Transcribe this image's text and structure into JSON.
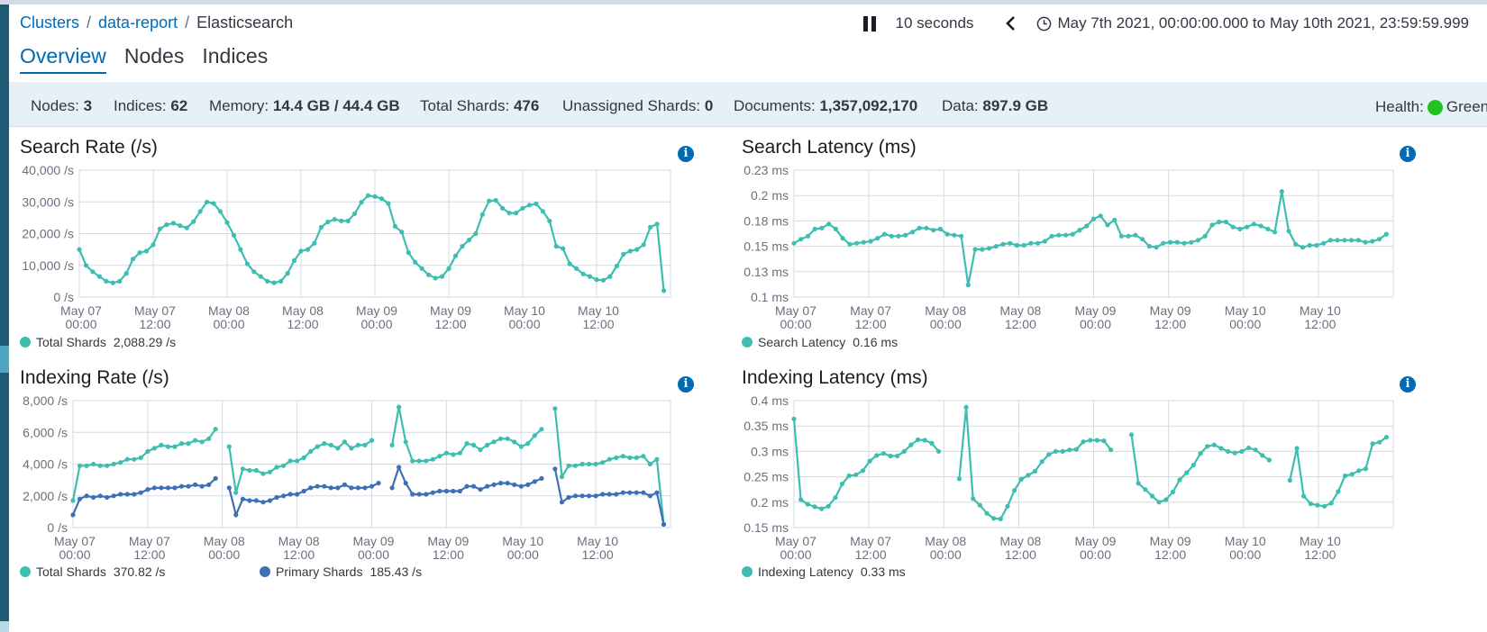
{
  "breadcrumb": {
    "items": [
      "Clusters",
      "data-report"
    ],
    "current": "Elasticsearch"
  },
  "time": {
    "refresh": "10 seconds",
    "range": "May 7th 2021, 00:00:00.000 to May 10th 2021, 23:59:59.999"
  },
  "tabs": [
    "Overview",
    "Nodes",
    "Indices"
  ],
  "summary": {
    "nodes_label": "Nodes:",
    "nodes": "3",
    "indices_label": "Indices:",
    "indices": "62",
    "memory_label": "Memory:",
    "memory": "14.4 GB / 44.4 GB",
    "shards_label": "Total Shards:",
    "shards": "476",
    "unassigned_label": "Unassigned Shards:",
    "unassigned": "0",
    "documents_label": "Documents:",
    "documents": "1,357,092,170",
    "data_label": "Data:",
    "data": "897.9 GB",
    "health_label": "Health:",
    "health": "Green"
  },
  "colors": {
    "teal": "#3ebeb0",
    "blue": "#3f6fb4",
    "link": "#006bb4",
    "health_green": "#21c321"
  },
  "chart_data": [
    {
      "type": "line",
      "title": "Search Rate (/s)",
      "x_ticks": [
        "May 07\n00:00",
        "May 07\n12:00",
        "May 08\n00:00",
        "May 08\n12:00",
        "May 09\n00:00",
        "May 09\n12:00",
        "May 10\n00:00",
        "May 10\n12:00"
      ],
      "y_ticks": [
        "0 /s",
        "10,000 /s",
        "20,000 /s",
        "30,000 /s",
        "40,000 /s"
      ],
      "ylim": [
        0,
        40000
      ],
      "xlim": [
        0,
        96
      ],
      "series": [
        {
          "name": "Total Shards",
          "legend_value": "2,088.29 /s",
          "color": "#3ebeb0",
          "values": [
            15000,
            10000,
            8000,
            6500,
            5000,
            4500,
            5000,
            7500,
            12000,
            14000,
            14500,
            16500,
            21500,
            22800,
            23300,
            22500,
            21800,
            23800,
            27000,
            30000,
            29500,
            27000,
            23500,
            19500,
            15000,
            10500,
            8000,
            6500,
            5000,
            4500,
            5000,
            7500,
            11500,
            14500,
            15000,
            17000,
            22000,
            23700,
            24500,
            24000,
            24000,
            26300,
            29900,
            32000,
            31700,
            31000,
            29500,
            22300,
            20500,
            14000,
            11000,
            9000,
            7000,
            6000,
            6500,
            9000,
            13000,
            16000,
            18000,
            20000,
            26000,
            30300,
            30500,
            28000,
            26500,
            26500,
            28000,
            29000,
            29400,
            27000,
            24000,
            16000,
            15300,
            10500,
            9000,
            7300,
            6500,
            5500,
            5300,
            6500,
            9800,
            13500,
            14500,
            15000,
            16500,
            22000,
            23000,
            2000
          ]
        }
      ]
    },
    {
      "type": "line",
      "title": "Search Latency (ms)",
      "x_ticks": [
        "May 07\n00:00",
        "May 07\n12:00",
        "May 08\n00:00",
        "May 08\n12:00",
        "May 09\n00:00",
        "May 09\n12:00",
        "May 10\n00:00",
        "May 10\n12:00"
      ],
      "y_ticks": [
        "0.1 ms",
        "0.13 ms",
        "0.15 ms",
        "0.18 ms",
        "0.2 ms",
        "0.23 ms"
      ],
      "ylim": [
        0.1,
        0.225
      ],
      "xlim": [
        0,
        96
      ],
      "series": [
        {
          "name": "Search Latency",
          "legend_value": "0.16 ms",
          "color": "#3ebeb0",
          "values": [
            0.153,
            0.157,
            0.16,
            0.167,
            0.168,
            0.172,
            0.167,
            0.158,
            0.152,
            0.153,
            0.154,
            0.155,
            0.158,
            0.162,
            0.16,
            0.16,
            0.161,
            0.164,
            0.168,
            0.168,
            0.166,
            0.167,
            0.162,
            0.161,
            0.16,
            0.112,
            0.147,
            0.147,
            0.148,
            0.15,
            0.152,
            0.153,
            0.151,
            0.151,
            0.153,
            0.153,
            0.155,
            0.16,
            0.161,
            0.161,
            0.162,
            0.166,
            0.17,
            0.177,
            0.18,
            0.171,
            0.176,
            0.16,
            0.16,
            0.161,
            0.157,
            0.15,
            0.149,
            0.153,
            0.154,
            0.154,
            0.153,
            0.154,
            0.156,
            0.16,
            0.171,
            0.174,
            0.174,
            0.169,
            0.167,
            0.169,
            0.172,
            0.17,
            0.167,
            0.164,
            0.204,
            0.165,
            0.152,
            0.149,
            0.151,
            0.151,
            0.153,
            0.156,
            0.156,
            0.156,
            0.156,
            0.156,
            0.154,
            0.155,
            0.157,
            0.162
          ]
        }
      ]
    },
    {
      "type": "line",
      "title": "Indexing Rate (/s)",
      "x_ticks": [
        "May 07\n00:00",
        "May 07\n12:00",
        "May 08\n00:00",
        "May 08\n12:00",
        "May 09\n00:00",
        "May 09\n12:00",
        "May 10\n00:00",
        "May 10\n12:00"
      ],
      "y_ticks": [
        "0 /s",
        "2,000 /s",
        "4,000 /s",
        "6,000 /s",
        "8,000 /s"
      ],
      "ylim": [
        0,
        8000
      ],
      "xlim": [
        0,
        96
      ],
      "series": [
        {
          "name": "Total Shards",
          "legend_value": "370.82 /s",
          "color": "#3ebeb0",
          "values": [
            1700,
            3900,
            3900,
            4000,
            3900,
            3900,
            4000,
            4100,
            4300,
            4300,
            4400,
            4800,
            5000,
            5200,
            5100,
            5100,
            5300,
            5300,
            5500,
            5400,
            5600,
            6200,
            null,
            5100,
            2200,
            3700,
            3600,
            3600,
            3400,
            3500,
            3800,
            3900,
            4200,
            4200,
            4400,
            4800,
            5100,
            5300,
            5200,
            5000,
            5400,
            5000,
            5200,
            5200,
            5500,
            null,
            null,
            5200,
            7600,
            5400,
            4200,
            4200,
            4200,
            4300,
            4500,
            4700,
            4600,
            4700,
            5300,
            5200,
            4900,
            5200,
            5400,
            5600,
            5600,
            5400,
            5100,
            5300,
            5800,
            6200,
            null,
            7500,
            3200,
            3900,
            3900,
            4000,
            4000,
            4000,
            4100,
            4300,
            4400,
            4500,
            4400,
            4400,
            4500,
            4000,
            4300,
            200
          ]
        },
        {
          "name": "Primary Shards",
          "legend_value": "185.43 /s",
          "color": "#3f6fb4",
          "values": [
            800,
            1800,
            2000,
            1900,
            2000,
            1900,
            2000,
            2100,
            2100,
            2100,
            2200,
            2400,
            2500,
            2500,
            2500,
            2500,
            2600,
            2600,
            2700,
            2600,
            2700,
            3100,
            null,
            2500,
            800,
            1800,
            1700,
            1700,
            1600,
            1700,
            1900,
            2000,
            2100,
            2100,
            2300,
            2500,
            2600,
            2600,
            2500,
            2500,
            2700,
            2500,
            2500,
            2500,
            2600,
            2800,
            null,
            2500,
            3800,
            2800,
            2100,
            2100,
            2100,
            2200,
            2300,
            2300,
            2300,
            2300,
            2600,
            2600,
            2400,
            2600,
            2700,
            2800,
            2800,
            2700,
            2600,
            2700,
            2900,
            3100,
            null,
            3700,
            1600,
            1900,
            2000,
            2000,
            2000,
            2000,
            2100,
            2100,
            2100,
            2200,
            2200,
            2200,
            2200,
            2000,
            2200,
            200
          ]
        }
      ]
    },
    {
      "type": "line",
      "title": "Indexing Latency (ms)",
      "x_ticks": [
        "May 07\n00:00",
        "May 07\n12:00",
        "May 08\n00:00",
        "May 08\n12:00",
        "May 09\n00:00",
        "May 09\n12:00",
        "May 10\n00:00",
        "May 10\n12:00"
      ],
      "y_ticks": [
        "0.15 ms",
        "0.2 ms",
        "0.25 ms",
        "0.3 ms",
        "0.35 ms",
        "0.4 ms"
      ],
      "ylim": [
        0.15,
        0.4
      ],
      "xlim": [
        0,
        96
      ],
      "series": [
        {
          "name": "Indexing Latency",
          "legend_value": "0.33 ms",
          "color": "#3ebeb0",
          "values": [
            0.364,
            0.205,
            0.196,
            0.191,
            0.187,
            0.192,
            0.209,
            0.236,
            0.252,
            0.254,
            0.262,
            0.281,
            0.292,
            0.296,
            0.291,
            0.291,
            0.3,
            0.313,
            0.323,
            0.322,
            0.316,
            0.3,
            null,
            null,
            0.246,
            0.387,
            0.207,
            0.194,
            0.178,
            0.168,
            0.167,
            0.192,
            0.223,
            0.245,
            0.253,
            0.261,
            0.28,
            0.294,
            0.3,
            0.3,
            0.303,
            0.304,
            0.319,
            0.322,
            0.322,
            0.321,
            0.303,
            null,
            null,
            0.333,
            0.237,
            0.225,
            0.212,
            0.2,
            0.205,
            0.22,
            0.244,
            0.258,
            0.273,
            0.296,
            0.31,
            0.313,
            0.306,
            0.3,
            0.297,
            0.3,
            0.307,
            0.303,
            0.292,
            0.283,
            null,
            null,
            0.243,
            0.306,
            0.212,
            0.197,
            0.194,
            0.192,
            0.198,
            0.221,
            0.252,
            0.255,
            0.262,
            0.266,
            0.315,
            0.318,
            0.328
          ]
        }
      ]
    }
  ]
}
